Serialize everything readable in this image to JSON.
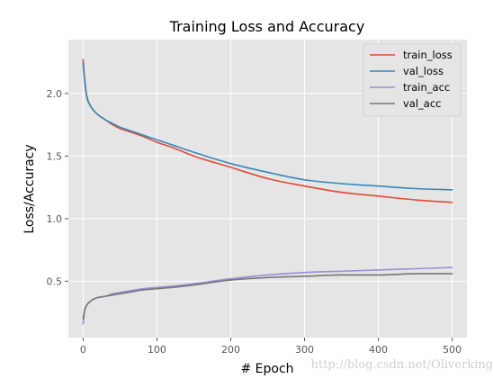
{
  "chart_data": {
    "type": "line",
    "title": "Training Loss and Accuracy",
    "xlabel": "# Epoch",
    "ylabel": "Loss/Accuracy",
    "xlim": [
      -20,
      520
    ],
    "ylim": [
      0.05,
      2.43
    ],
    "x_ticks": [
      0,
      100,
      200,
      300,
      400,
      500
    ],
    "y_ticks": [
      0.5,
      1.0,
      1.5,
      2.0
    ],
    "x_tick_labels": [
      "0",
      "100",
      "200",
      "300",
      "400",
      "500"
    ],
    "y_tick_labels": [
      "0.5",
      "1.0",
      "1.5",
      "2.0"
    ],
    "grid": true,
    "style": "ggplot",
    "legend_position": "top-right",
    "x": [
      0,
      2,
      5,
      10,
      15,
      20,
      30,
      40,
      50,
      60,
      80,
      100,
      120,
      150,
      200,
      250,
      300,
      350,
      400,
      450,
      500
    ],
    "series": [
      {
        "name": "train_loss",
        "color": "#E24A33",
        "values": [
          2.27,
          2.12,
          1.98,
          1.9,
          1.86,
          1.83,
          1.79,
          1.75,
          1.72,
          1.7,
          1.66,
          1.61,
          1.57,
          1.5,
          1.41,
          1.32,
          1.26,
          1.21,
          1.18,
          1.15,
          1.13
        ]
      },
      {
        "name": "val_loss",
        "color": "#348ABD",
        "values": [
          2.24,
          2.1,
          1.97,
          1.9,
          1.86,
          1.83,
          1.79,
          1.76,
          1.73,
          1.71,
          1.67,
          1.63,
          1.59,
          1.53,
          1.44,
          1.37,
          1.31,
          1.28,
          1.26,
          1.24,
          1.23
        ]
      },
      {
        "name": "train_acc",
        "color": "#988ED5",
        "values": [
          0.16,
          0.26,
          0.31,
          0.34,
          0.36,
          0.37,
          0.38,
          0.4,
          0.41,
          0.42,
          0.44,
          0.45,
          0.46,
          0.48,
          0.52,
          0.55,
          0.57,
          0.58,
          0.59,
          0.6,
          0.61
        ]
      },
      {
        "name": "val_acc",
        "color": "#777777",
        "values": [
          0.2,
          0.27,
          0.31,
          0.34,
          0.36,
          0.37,
          0.38,
          0.39,
          0.4,
          0.41,
          0.43,
          0.44,
          0.45,
          0.47,
          0.51,
          0.53,
          0.54,
          0.55,
          0.55,
          0.56,
          0.56
        ]
      }
    ]
  },
  "watermark": "http://blog.csdn.net/Oliverking",
  "colors": {
    "plot_background": "#E5E5E5",
    "grid": "#FFFFFF",
    "tick_label": "#555555"
  }
}
